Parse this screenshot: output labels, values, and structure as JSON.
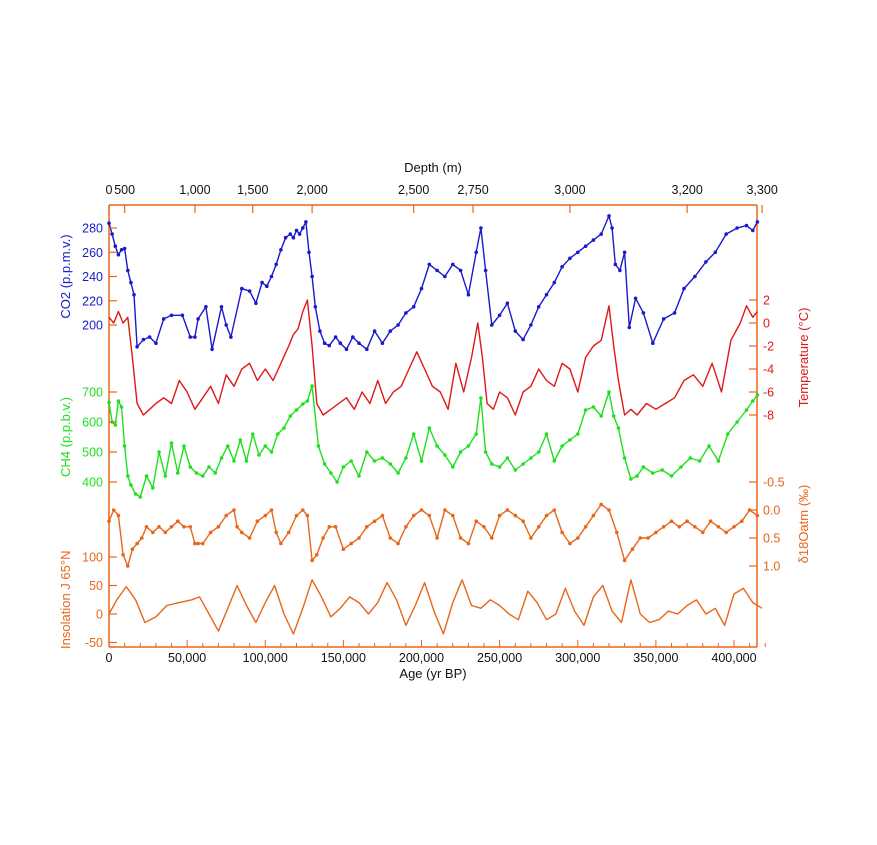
{
  "chart_data": {
    "type": "line",
    "title": "",
    "top_axis": {
      "label": "Depth (m)",
      "ticks": [
        {
          "label": "0",
          "age": 0
        },
        {
          "label": "500",
          "age": 10000
        },
        {
          "label": "1,000",
          "age": 55000
        },
        {
          "label": "1,500",
          "age": 92000
        },
        {
          "label": "2,000",
          "age": 130000
        },
        {
          "label": "2,500",
          "age": 195000
        },
        {
          "label": "2,750",
          "age": 233000
        },
        {
          "label": "3,000",
          "age": 295000
        },
        {
          "label": "3,200",
          "age": 370000
        },
        {
          "label": "3,300",
          "age": 418000
        }
      ]
    },
    "xaxis": {
      "label": "Age (yr BP)",
      "range": [
        0,
        420000
      ],
      "ticks": [
        {
          "label": "0",
          "v": 0
        },
        {
          "label": "50,000",
          "v": 50000
        },
        {
          "label": "100,000",
          "v": 100000
        },
        {
          "label": "150,000",
          "v": 150000
        },
        {
          "label": "200,000",
          "v": 200000
        },
        {
          "label": "250,000",
          "v": 250000
        },
        {
          "label": "300,000",
          "v": 300000
        },
        {
          "label": "350,000",
          "v": 350000
        },
        {
          "label": "400,000",
          "v": 400000
        }
      ]
    },
    "series": [
      {
        "name": "CO2",
        "axis_label": "CO2 (p.p.m.v.)",
        "axis_side": "left",
        "color": "#1a1acc",
        "markers": true,
        "ticks": [
          "280",
          "260",
          "240",
          "220",
          "200"
        ],
        "x": [
          0,
          2000,
          4000,
          6000,
          8000,
          10000,
          12000,
          14000,
          16000,
          18000,
          22000,
          26000,
          30000,
          35000,
          40000,
          47000,
          52000,
          55000,
          57000,
          62000,
          66000,
          72000,
          75000,
          78000,
          85000,
          90000,
          94000,
          98000,
          101000,
          104000,
          107000,
          110000,
          113000,
          116000,
          118000,
          120000,
          122000,
          124000,
          126000,
          128000,
          130000,
          132000,
          135000,
          138000,
          141000,
          145000,
          148000,
          152000,
          156000,
          160000,
          165000,
          170000,
          175000,
          180000,
          185000,
          190000,
          195000,
          200000,
          205000,
          210000,
          215000,
          220000,
          225000,
          230000,
          235000,
          238000,
          241000,
          245000,
          250000,
          255000,
          260000,
          265000,
          270000,
          275000,
          280000,
          285000,
          290000,
          295000,
          300000,
          305000,
          310000,
          315000,
          320000,
          322000,
          324000,
          327000,
          330000,
          333000,
          337000,
          342000,
          348000,
          355000,
          362000,
          368000,
          375000,
          382000,
          388000,
          395000,
          402000,
          408000,
          412000,
          415000
        ],
        "values": [
          284,
          275,
          265,
          258,
          262,
          263,
          245,
          235,
          225,
          182,
          188,
          190,
          185,
          205,
          208,
          208,
          190,
          190,
          205,
          215,
          180,
          215,
          200,
          190,
          230,
          228,
          218,
          235,
          232,
          240,
          250,
          262,
          272,
          275,
          272,
          278,
          275,
          280,
          285,
          260,
          240,
          215,
          195,
          185,
          183,
          190,
          185,
          180,
          190,
          185,
          180,
          195,
          185,
          195,
          200,
          210,
          215,
          230,
          250,
          245,
          240,
          250,
          245,
          225,
          260,
          280,
          245,
          200,
          208,
          218,
          195,
          188,
          200,
          215,
          225,
          235,
          248,
          255,
          260,
          265,
          270,
          275,
          290,
          280,
          250,
          245,
          260,
          198,
          222,
          210,
          185,
          205,
          210,
          230,
          240,
          252,
          260,
          275,
          280,
          282,
          278,
          285
        ]
      },
      {
        "name": "Temperature",
        "axis_label": "Temperature (°C)",
        "axis_side": "right",
        "color": "#e01818",
        "markers": false,
        "ticks": [
          "2",
          "0",
          "-2",
          "-4",
          "-6",
          "-8"
        ],
        "x": [
          0,
          3000,
          6000,
          9000,
          12000,
          15000,
          18000,
          22000,
          26000,
          30000,
          35000,
          40000,
          45000,
          50000,
          55000,
          60000,
          65000,
          70000,
          75000,
          80000,
          85000,
          90000,
          95000,
          100000,
          105000,
          110000,
          115000,
          118000,
          121000,
          124000,
          127000,
          130000,
          133000,
          137000,
          142000,
          147000,
          152000,
          157000,
          162000,
          167000,
          172000,
          177000,
          182000,
          187000,
          192000,
          197000,
          202000,
          207000,
          212000,
          217000,
          222000,
          227000,
          232000,
          236000,
          239000,
          242000,
          246000,
          250000,
          255000,
          260000,
          265000,
          270000,
          275000,
          280000,
          285000,
          290000,
          295000,
          300000,
          305000,
          310000,
          315000,
          320000,
          323000,
          326000,
          330000,
          334000,
          338000,
          344000,
          350000,
          356000,
          362000,
          368000,
          374000,
          380000,
          386000,
          392000,
          398000,
          404000,
          408000,
          412000,
          415000
        ],
        "values": [
          0.5,
          0,
          1,
          0,
          0.5,
          -3,
          -7,
          -8,
          -7.5,
          -7,
          -6.5,
          -7,
          -5,
          -6,
          -7.5,
          -6.5,
          -5.5,
          -7,
          -4.5,
          -5.5,
          -4,
          -3.5,
          -5,
          -4,
          -5,
          -3.5,
          -2,
          -1,
          -0.5,
          1,
          2,
          -2,
          -7,
          -8,
          -7.5,
          -7,
          -6.5,
          -7.5,
          -6,
          -7,
          -5,
          -7,
          -6,
          -5.5,
          -4,
          -2.5,
          -4,
          -5.5,
          -6,
          -7.5,
          -3.5,
          -6,
          -3,
          0,
          -3,
          -7,
          -7.5,
          -6,
          -6.5,
          -8,
          -6,
          -5.5,
          -4,
          -5,
          -5.5,
          -3.5,
          -4,
          -6,
          -3,
          -2,
          -1.5,
          1.5,
          -2,
          -5,
          -8,
          -7.5,
          -8,
          -7,
          -7.5,
          -7,
          -6.5,
          -5,
          -4.5,
          -5.5,
          -3.5,
          -6,
          -1.5,
          0,
          1.5,
          0.5,
          1
        ]
      },
      {
        "name": "CH4",
        "axis_label": "CH4 (p.p.b.v.)",
        "axis_side": "left",
        "color": "#1ee01e",
        "markers": true,
        "ticks": [
          "700",
          "600",
          "500",
          "400"
        ],
        "x": [
          0,
          2000,
          4000,
          6000,
          8000,
          10000,
          12000,
          14000,
          17000,
          20000,
          24000,
          28000,
          32000,
          36000,
          40000,
          44000,
          48000,
          52000,
          56000,
          60000,
          64000,
          68000,
          72000,
          76000,
          80000,
          84000,
          88000,
          92000,
          96000,
          100000,
          104000,
          108000,
          112000,
          116000,
          120000,
          124000,
          127000,
          130000,
          134000,
          138000,
          142000,
          146000,
          150000,
          155000,
          160000,
          165000,
          170000,
          175000,
          180000,
          185000,
          190000,
          195000,
          200000,
          205000,
          210000,
          215000,
          220000,
          225000,
          230000,
          235000,
          238000,
          241000,
          245000,
          250000,
          255000,
          260000,
          265000,
          270000,
          275000,
          280000,
          285000,
          290000,
          295000,
          300000,
          305000,
          310000,
          315000,
          320000,
          323000,
          326000,
          330000,
          334000,
          338000,
          342000,
          348000,
          354000,
          360000,
          366000,
          372000,
          378000,
          384000,
          390000,
          396000,
          402000,
          408000,
          412000,
          415000
        ],
        "values": [
          665,
          600,
          590,
          670,
          650,
          520,
          420,
          390,
          360,
          350,
          420,
          380,
          500,
          420,
          530,
          430,
          520,
          450,
          430,
          420,
          450,
          430,
          480,
          520,
          470,
          540,
          470,
          560,
          490,
          520,
          500,
          560,
          580,
          620,
          640,
          660,
          670,
          720,
          520,
          460,
          430,
          400,
          450,
          470,
          420,
          500,
          470,
          480,
          460,
          430,
          480,
          560,
          470,
          580,
          520,
          490,
          450,
          500,
          520,
          560,
          680,
          500,
          460,
          450,
          480,
          440,
          460,
          480,
          500,
          560,
          470,
          520,
          540,
          560,
          640,
          650,
          620,
          700,
          620,
          580,
          480,
          410,
          420,
          450,
          430,
          440,
          420,
          450,
          480,
          470,
          520,
          470,
          560,
          600,
          640,
          670,
          690
        ]
      },
      {
        "name": "δ18O atm",
        "axis_label": "δ18Oatm (‰)",
        "axis_side": "right",
        "color": "#e8661a",
        "markers": true,
        "inverted_axis": true,
        "ticks": [
          "-0.5",
          "0.0",
          "0.5",
          "1.0"
        ],
        "x": [
          0,
          3000,
          6000,
          9000,
          12000,
          15000,
          18000,
          21000,
          24000,
          28000,
          32000,
          36000,
          40000,
          44000,
          48000,
          52000,
          55000,
          57000,
          60000,
          65000,
          70000,
          75000,
          80000,
          82000,
          85000,
          90000,
          95000,
          100000,
          104000,
          107000,
          110000,
          115000,
          120000,
          124000,
          127000,
          130000,
          133000,
          137000,
          141000,
          145000,
          150000,
          155000,
          160000,
          165000,
          170000,
          175000,
          180000,
          185000,
          190000,
          195000,
          200000,
          205000,
          210000,
          215000,
          220000,
          225000,
          230000,
          235000,
          240000,
          245000,
          250000,
          255000,
          260000,
          265000,
          270000,
          275000,
          280000,
          285000,
          290000,
          295000,
          300000,
          305000,
          310000,
          315000,
          320000,
          325000,
          330000,
          335000,
          340000,
          345000,
          350000,
          355000,
          360000,
          365000,
          370000,
          375000,
          380000,
          385000,
          390000,
          395000,
          400000,
          405000,
          410000,
          415000
        ],
        "values": [
          0.2,
          0.0,
          0.1,
          0.8,
          1.0,
          0.7,
          0.6,
          0.5,
          0.3,
          0.4,
          0.3,
          0.4,
          0.3,
          0.2,
          0.3,
          0.3,
          0.6,
          0.6,
          0.6,
          0.4,
          0.3,
          0.1,
          0.0,
          0.3,
          0.4,
          0.5,
          0.2,
          0.1,
          0.0,
          0.4,
          0.6,
          0.4,
          0.1,
          0.0,
          0.1,
          0.9,
          0.8,
          0.5,
          0.3,
          0.3,
          0.7,
          0.6,
          0.5,
          0.3,
          0.2,
          0.1,
          0.5,
          0.6,
          0.3,
          0.1,
          0.0,
          0.1,
          0.5,
          0.0,
          0.1,
          0.5,
          0.6,
          0.2,
          0.3,
          0.5,
          0.1,
          0.0,
          0.1,
          0.2,
          0.5,
          0.3,
          0.1,
          0.0,
          0.4,
          0.6,
          0.5,
          0.3,
          0.1,
          -0.1,
          0.0,
          0.4,
          0.9,
          0.7,
          0.5,
          0.5,
          0.4,
          0.3,
          0.2,
          0.3,
          0.2,
          0.3,
          0.4,
          0.2,
          0.3,
          0.4,
          0.3,
          0.2,
          0.0,
          0.1
        ]
      },
      {
        "name": "Insolation J 65°N",
        "axis_label": "Insolation J 65°N",
        "axis_side": "left",
        "color": "#e8661a",
        "markers": false,
        "ticks": [
          "100",
          "50",
          "0",
          "-50"
        ],
        "x": [
          0,
          5000,
          11000,
          17000,
          23000,
          30000,
          37000,
          45000,
          53000,
          58000,
          64000,
          70000,
          76000,
          82000,
          88000,
          94000,
          100000,
          106000,
          112000,
          118000,
          124000,
          130000,
          136000,
          142000,
          148000,
          154000,
          160000,
          166000,
          172000,
          178000,
          184000,
          190000,
          196000,
          202000,
          208000,
          214000,
          220000,
          226000,
          232000,
          238000,
          244000,
          250000,
          256000,
          262000,
          268000,
          274000,
          280000,
          286000,
          292000,
          298000,
          304000,
          310000,
          316000,
          322000,
          328000,
          334000,
          340000,
          346000,
          352000,
          358000,
          364000,
          370000,
          376000,
          382000,
          388000,
          394000,
          400000,
          406000,
          412000,
          418000
        ],
        "values": [
          0,
          25,
          48,
          25,
          -15,
          -5,
          15,
          20,
          25,
          30,
          0,
          -30,
          10,
          50,
          15,
          -15,
          20,
          50,
          0,
          -35,
          10,
          60,
          30,
          -5,
          10,
          30,
          20,
          0,
          20,
          55,
          25,
          -20,
          15,
          55,
          5,
          -35,
          20,
          60,
          15,
          10,
          25,
          15,
          0,
          -10,
          40,
          20,
          -10,
          0,
          45,
          5,
          -20,
          30,
          50,
          5,
          -15,
          60,
          0,
          -15,
          -10,
          5,
          0,
          15,
          25,
          0,
          10,
          -20,
          35,
          45,
          20,
          10
        ]
      }
    ],
    "grid": false,
    "legend": "none (axis labels colored per series)"
  }
}
